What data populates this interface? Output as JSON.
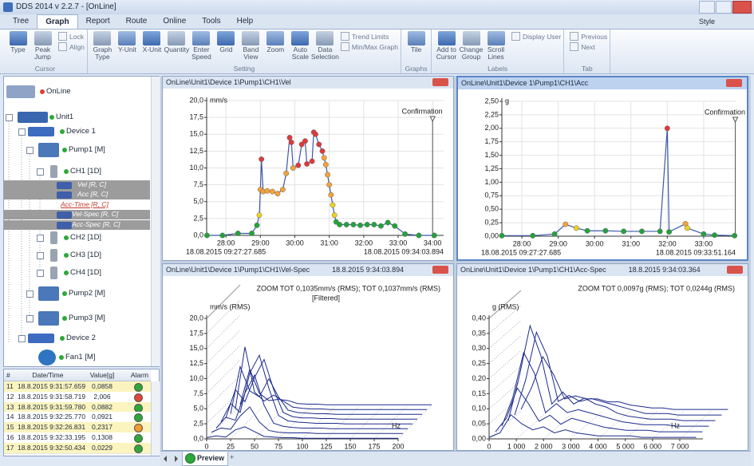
{
  "window": {
    "title": "DDS 2014 v 2.2.7 - [OnLine]",
    "style_button": "Style"
  },
  "menu": {
    "tabs": [
      "Tree",
      "Graph",
      "Report",
      "Route",
      "Online",
      "Tools",
      "Help"
    ],
    "active": 1
  },
  "ribbon": {
    "groups": [
      {
        "label": "Cursor",
        "buttons": [
          "Type",
          "Peak Jump"
        ],
        "small": [
          "Lock",
          "Align"
        ]
      },
      {
        "label": "Setting",
        "buttons": [
          "Graph Type",
          "Y-Unit",
          "X-Unit",
          "Quantity",
          "Enter Speed",
          "Grid",
          "Band View",
          "Zoom",
          "Auto Scale",
          "Data Selection"
        ],
        "small": [
          "Trend Limits",
          "Min/Max Graph"
        ]
      },
      {
        "label": "Graphs",
        "buttons": [
          "Tile"
        ]
      },
      {
        "label": "Labels",
        "buttons": [
          "Add to Cursor",
          "Change Group",
          "Scroll Lines"
        ],
        "small": [
          "Display User"
        ]
      },
      {
        "label": "Tab",
        "small": [
          "Previous",
          "Next"
        ]
      }
    ]
  },
  "tree": {
    "nodes": [
      {
        "label": "OnLine",
        "status": "#d8423a"
      },
      {
        "label": "Unit1",
        "status": "#2ea83a"
      },
      {
        "label": "Device 1",
        "status": "#2ea83a"
      },
      {
        "label": "Pump1 [M]",
        "status": "#2ea83a"
      },
      {
        "label": "CH1 [1D]",
        "status": "#2ea83a"
      },
      {
        "label": "Vel [R, C]"
      },
      {
        "label": "Acc [R, C]"
      },
      {
        "label": "Acc-Time [R, C]"
      },
      {
        "label": "Vel-Spec [R, C]"
      },
      {
        "label": "Acc-Spec [R, C]"
      },
      {
        "label": "CH2 [1D]",
        "status": "#2ea83a"
      },
      {
        "label": "CH3 [1D]",
        "status": "#2ea83a"
      },
      {
        "label": "CH4 [1D]",
        "status": "#2ea83a"
      },
      {
        "label": "Pump2 [M]",
        "status": "#2ea83a"
      },
      {
        "label": "Pump3 [M]",
        "status": "#2ea83a"
      },
      {
        "label": "Device 2",
        "status": "#2ea83a"
      },
      {
        "label": "Fan1 [M]",
        "status": "#2ea83a"
      }
    ]
  },
  "alarm_table": {
    "columns": [
      "#",
      "Date/Time",
      "Value[g]",
      "Alarm"
    ],
    "rows": [
      {
        "n": 11,
        "time": "18.8.2015 9:31:57.659",
        "value": "0,0858",
        "alarm": "#2ea83a"
      },
      {
        "n": 12,
        "time": "18.8.2015 9:31:58.719",
        "value": "2,006",
        "alarm": "#e0453a"
      },
      {
        "n": 13,
        "time": "18.8.2015 9:31:59.780",
        "value": "0,0882",
        "alarm": "#2ea83a"
      },
      {
        "n": 14,
        "time": "18.8.2015 9:32:25.770",
        "value": "0,0921",
        "alarm": "#2ea83a"
      },
      {
        "n": 15,
        "time": "18.8.2015 9:32:26.831",
        "value": "0,2317",
        "alarm": "#f29a2e"
      },
      {
        "n": 16,
        "time": "18.8.2015 9:32:33.195",
        "value": "0,1308",
        "alarm": "#2ea83a"
      },
      {
        "n": 17,
        "time": "18.8.2015 9:32:50.434",
        "value": "0,0229",
        "alarm": "#2ea83a"
      }
    ]
  },
  "bottom_tabs": {
    "items": [
      "Preview",
      "+"
    ]
  },
  "chart_data": [
    {
      "type": "line",
      "title": "OnLine\\Unit1\\Device 1\\Pump1\\CH1\\Vel",
      "y_label": "mm/s",
      "line_color": "#3d57a8",
      "grid": true,
      "x": [
        27.45,
        27.9,
        28.35,
        28.75,
        28.9,
        28.97,
        29.0,
        29.03,
        29.08,
        29.2,
        29.35,
        29.5,
        29.65,
        29.75,
        29.85,
        29.9,
        29.95,
        30.1,
        30.2,
        30.3,
        30.35,
        30.5,
        30.55,
        30.6,
        30.7,
        30.8,
        30.85,
        30.9,
        30.95,
        31.0,
        31.05,
        31.1,
        31.15,
        31.2,
        31.3,
        31.5,
        31.7,
        31.9,
        32.1,
        32.3,
        32.5,
        32.7,
        32.9,
        33.2,
        33.6,
        34.05
      ],
      "values": [
        0,
        0,
        0.3,
        0.3,
        1.5,
        3.0,
        6.8,
        11.3,
        6.5,
        6.6,
        6.5,
        6.2,
        6.8,
        9.2,
        14.5,
        13.8,
        10.0,
        10.4,
        13.5,
        14.0,
        10.6,
        11.0,
        15.3,
        15.0,
        13.5,
        12.5,
        11.5,
        10.5,
        9.0,
        7.5,
        6.0,
        4.5,
        3.0,
        2.0,
        1.6,
        1.6,
        1.6,
        1.5,
        1.6,
        1.6,
        1.4,
        1.9,
        1.4,
        0.2,
        0,
        0
      ],
      "point_colors": [
        "#22a33a",
        "#22a33a",
        "#22a33a",
        "#22a33a",
        "#22a33a",
        "#f0d020",
        "#f4a23a",
        "#e0393a",
        "#f4a23a",
        "#f4a23a",
        "#f4a23a",
        "#f4a23a",
        "#f4a23a",
        "#f4a23a",
        "#e0393a",
        "#e0393a",
        "#f4a23a",
        "#e0393a",
        "#e0393a",
        "#e0393a",
        "#e0393a",
        "#e0393a",
        "#e0393a",
        "#e0393a",
        "#e0393a",
        "#e0393a",
        "#f4a23a",
        "#f4a23a",
        "#f4a23a",
        "#f4a23a",
        "#f4a23a",
        "#f0d020",
        "#f0d020",
        "#22a33a",
        "#22a33a",
        "#22a33a",
        "#22a33a",
        "#22a33a",
        "#22a33a",
        "#22a33a",
        "#22a33a",
        "#22a33a",
        "#22a33a",
        "#22a33a",
        "#22a33a",
        "#22a33a"
      ],
      "xlim": [
        27.44,
        34.32
      ],
      "ylim": [
        0,
        20
      ],
      "xticks": [
        {
          "value": 28,
          "label": "28:00"
        },
        {
          "value": 29,
          "label": "29:00"
        },
        {
          "value": 30,
          "label": "30:00"
        },
        {
          "value": 31,
          "label": "31:00"
        },
        {
          "value": 32,
          "label": "32:00"
        },
        {
          "value": 33,
          "label": "33:00"
        },
        {
          "value": 34,
          "label": "34:00"
        }
      ],
      "yticks": [
        {
          "value": 0,
          "label": "0,0"
        },
        {
          "value": 2.5,
          "label": "2,5"
        },
        {
          "value": 5,
          "label": "5,0"
        },
        {
          "value": 7.5,
          "label": "7,5"
        },
        {
          "value": 10,
          "label": "10,0"
        },
        {
          "value": 12.5,
          "label": "12,5"
        },
        {
          "value": 15,
          "label": "15,0"
        },
        {
          "value": 17.5,
          "label": "17,5"
        },
        {
          "value": 20,
          "label": "20,0"
        }
      ],
      "start_label": "18.08.2015 09:27:27.685",
      "end_label": "18.08.2015 09:34:03.894",
      "annotation": "Confirmation",
      "annotation_x": 34.0
    },
    {
      "type": "line",
      "title": "OnLine\\Unit1\\Device 1\\Pump1\\CH1\\Acc",
      "y_label": "g",
      "line_color": "#3d57a8",
      "grid": true,
      "x": [
        27.45,
        28.3,
        28.9,
        29.2,
        29.5,
        29.8,
        30.3,
        30.8,
        31.3,
        31.8,
        32.0,
        32.05,
        32.5,
        32.55,
        33.0,
        33.3,
        33.85
      ],
      "values": [
        0.01,
        0.01,
        0.04,
        0.22,
        0.15,
        0.1,
        0.1,
        0.09,
        0.09,
        0.09,
        2.0,
        0.08,
        0.23,
        0.15,
        0.04,
        0.02,
        0.01
      ],
      "point_colors": [
        "#22a33a",
        "#22a33a",
        "#22a33a",
        "#f4a23a",
        "#f0d020",
        "#22a33a",
        "#22a33a",
        "#22a33a",
        "#22a33a",
        "#22a33a",
        "#e0393a",
        "#22a33a",
        "#f4a23a",
        "#f0d020",
        "#22a33a",
        "#22a33a",
        "#22a33a"
      ],
      "xlim": [
        27.45,
        33.88
      ],
      "ylim": [
        0,
        2.5
      ],
      "xticks": [
        {
          "value": 28,
          "label": "28:00"
        },
        {
          "value": 29,
          "label": "29:00"
        },
        {
          "value": 30,
          "label": "30:00"
        },
        {
          "value": 31,
          "label": "31:00"
        },
        {
          "value": 32,
          "label": "32:00"
        },
        {
          "value": 33,
          "label": "33:00"
        }
      ],
      "yticks": [
        {
          "value": 0,
          "label": "0,00"
        },
        {
          "value": 0.25,
          "label": "0,25"
        },
        {
          "value": 0.5,
          "label": "0,50"
        },
        {
          "value": 0.75,
          "label": "0,75"
        },
        {
          "value": 1,
          "label": "1,00"
        },
        {
          "value": 1.25,
          "label": "1,25"
        },
        {
          "value": 1.5,
          "label": "1,50"
        },
        {
          "value": 1.75,
          "label": "1,75"
        },
        {
          "value": 2,
          "label": "2,00"
        },
        {
          "value": 2.25,
          "label": "2,25"
        },
        {
          "value": 2.5,
          "label": "2,50"
        }
      ],
      "start_label": "18.08.2015 09:27:27.685",
      "end_label": "18.08.2015 09:33:51.164",
      "annotation": "Confirmation",
      "annotation_x": 33.87
    },
    {
      "type": "waterfall",
      "title": "OnLine\\Unit1\\Device 1\\Pump1\\CH1\\Vel-Spec",
      "subtitle": "18.8.2015 9:34:03.894",
      "y_label": "mm/s (RMS)",
      "x_label": "Hz",
      "notes": [
        "ZOOM TOT 0,1035mm/s (RMS); TOT 0,1037mm/s (RMS)",
        "[Filtered]"
      ],
      "line_color": "#1c2b8c",
      "x": [
        0,
        10,
        20,
        30,
        40,
        50,
        60,
        70,
        80,
        90,
        100,
        110,
        120,
        130,
        140,
        150,
        160,
        170,
        180,
        190,
        200
      ],
      "traces": [
        [
          0.2,
          0.5,
          0.3,
          1.5,
          2.0,
          1.2,
          0.4,
          0.3,
          0.2,
          0.2,
          0.1,
          0.1,
          0.1,
          0.1,
          0.1,
          0.1,
          0.1,
          0.1,
          0.1,
          0.1,
          0.1
        ],
        [
          0.3,
          1.0,
          0.8,
          3.0,
          4.5,
          2.0,
          0.6,
          0.3,
          0.2,
          0.2,
          0.2,
          0.1,
          0.1,
          0.1,
          0.1,
          0.1,
          0.1,
          0.1,
          0.1,
          0.1,
          0.1
        ],
        [
          0.2,
          2.0,
          1.5,
          6.0,
          9.0,
          4.0,
          1.0,
          0.5,
          0.3,
          0.2,
          0.2,
          0.2,
          0.1,
          0.1,
          0.1,
          0.1,
          0.1,
          0.1,
          0.1,
          0.1,
          0.1
        ],
        [
          0.4,
          3.5,
          2.0,
          8.5,
          11.5,
          6.0,
          1.5,
          0.6,
          0.4,
          0.3,
          0.2,
          0.2,
          0.2,
          0.1,
          0.1,
          0.1,
          0.1,
          0.1,
          0.1,
          0.1,
          0.1
        ],
        [
          0.3,
          5.0,
          3.0,
          7.0,
          10.0,
          5.0,
          1.2,
          0.5,
          0.3,
          0.3,
          0.2,
          0.2,
          0.1,
          0.1,
          0.1,
          0.1,
          0.1,
          0.1,
          0.1,
          0.1,
          0.1
        ],
        [
          0.2,
          8.0,
          4.0,
          3.0,
          6.0,
          3.0,
          0.8,
          0.4,
          0.3,
          0.2,
          0.2,
          0.1,
          0.1,
          0.1,
          0.1,
          0.1,
          0.1,
          0.1,
          0.1,
          0.1,
          0.1
        ],
        [
          0.2,
          10.5,
          3.0,
          1.5,
          2.5,
          1.5,
          0.5,
          0.3,
          0.2,
          0.2,
          0.1,
          0.1,
          0.1,
          0.1,
          0.1,
          0.1,
          0.1,
          0.1,
          0.1,
          0.1,
          0.1
        ],
        [
          0.1,
          6.0,
          2.0,
          0.8,
          1.0,
          0.8,
          0.3,
          0.2,
          0.2,
          0.1,
          0.1,
          0.1,
          0.1,
          0.1,
          0.1,
          0.1,
          0.1,
          0.1,
          0.1,
          0.1,
          0.1
        ]
      ],
      "xlim": [
        0,
        200
      ],
      "ylim": [
        0,
        20
      ],
      "xticks": [
        0,
        25,
        50,
        75,
        100,
        125,
        150,
        175,
        200
      ],
      "yticks": [
        {
          "value": 0,
          "label": "0,0"
        },
        {
          "value": 2.5,
          "label": "2,5"
        },
        {
          "value": 5,
          "label": "5,0"
        },
        {
          "value": 7.5,
          "label": "7,5"
        },
        {
          "value": 10,
          "label": "10,0"
        },
        {
          "value": 12.5,
          "label": "12,5"
        },
        {
          "value": 15,
          "label": "15,0"
        },
        {
          "value": 17.5,
          "label": "17,5"
        },
        {
          "value": 20,
          "label": "20,0"
        }
      ]
    },
    {
      "type": "waterfall",
      "title": "OnLine\\Unit1\\Device 1\\Pump1\\CH1\\Acc-Spec",
      "subtitle": "18.8.2015 9:34:03.364",
      "y_label": "g (RMS)",
      "x_label": "Hz",
      "notes": [
        "ZOOM TOT 0,0097g (RMS); TOT 0,0244g (RMS)"
      ],
      "line_color": "#1c2b8c",
      "x": [
        0,
        400,
        800,
        1200,
        1600,
        2000,
        2400,
        2800,
        3200,
        3600,
        4000,
        4400,
        4800,
        5200,
        5600,
        6000,
        6400,
        6800,
        7200,
        7600
      ],
      "traces": [
        [
          0.005,
          0.02,
          0.08,
          0.05,
          0.03,
          0.04,
          0.02,
          0.03,
          0.02,
          0.015,
          0.01,
          0.01,
          0.01,
          0.01,
          0.005,
          0.005,
          0.005,
          0.005,
          0.005,
          0.005
        ],
        [
          0.005,
          0.05,
          0.15,
          0.1,
          0.04,
          0.06,
          0.03,
          0.05,
          0.04,
          0.03,
          0.02,
          0.015,
          0.01,
          0.01,
          0.01,
          0.005,
          0.005,
          0.005,
          0.005,
          0.005
        ],
        [
          0.005,
          0.1,
          0.25,
          0.18,
          0.05,
          0.08,
          0.05,
          0.06,
          0.05,
          0.04,
          0.03,
          0.02,
          0.015,
          0.01,
          0.01,
          0.01,
          0.005,
          0.005,
          0.005,
          0.005
        ],
        [
          0.005,
          0.15,
          0.32,
          0.22,
          0.06,
          0.1,
          0.06,
          0.08,
          0.06,
          0.05,
          0.03,
          0.02,
          0.015,
          0.01,
          0.01,
          0.01,
          0.005,
          0.005,
          0.005,
          0.005
        ],
        [
          0.005,
          0.12,
          0.28,
          0.2,
          0.05,
          0.07,
          0.05,
          0.06,
          0.05,
          0.04,
          0.03,
          0.02,
          0.01,
          0.01,
          0.01,
          0.005,
          0.005,
          0.005,
          0.005,
          0.005
        ],
        [
          0.005,
          0.08,
          0.18,
          0.12,
          0.04,
          0.05,
          0.04,
          0.04,
          0.03,
          0.03,
          0.02,
          0.015,
          0.01,
          0.01,
          0.005,
          0.005,
          0.005,
          0.005,
          0.005,
          0.005
        ]
      ],
      "xlim": [
        0,
        7850
      ],
      "ylim": [
        0,
        0.4
      ],
      "xticks": [
        0,
        {
          "value": 1000,
          "label": "1 000"
        },
        {
          "value": 2000,
          "label": "2 000"
        },
        {
          "value": 3000,
          "label": "3 000"
        },
        {
          "value": 4000,
          "label": "4 000"
        },
        {
          "value": 5000,
          "label": "5 000"
        },
        {
          "value": 6000,
          "label": "6 000"
        },
        {
          "value": 7000,
          "label": "7 000"
        }
      ],
      "yticks": [
        {
          "value": 0,
          "label": "0,00"
        },
        {
          "value": 0.05,
          "label": "0,05"
        },
        {
          "value": 0.1,
          "label": "0,10"
        },
        {
          "value": 0.15,
          "label": "0,15"
        },
        {
          "value": 0.2,
          "label": "0,20"
        },
        {
          "value": 0.25,
          "label": "0,25"
        },
        {
          "value": 0.3,
          "label": "0,30"
        },
        {
          "value": 0.35,
          "label": "0,35"
        },
        {
          "value": 0.4,
          "label": "0,40"
        }
      ]
    }
  ]
}
